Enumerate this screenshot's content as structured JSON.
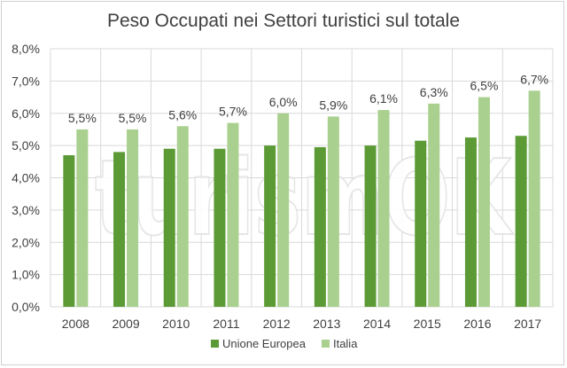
{
  "chart_data": {
    "type": "bar",
    "title": "Peso Occupati nei Settori turistici sul totale",
    "categories": [
      "2008",
      "2009",
      "2010",
      "2011",
      "2012",
      "2013",
      "2014",
      "2015",
      "2016",
      "2017"
    ],
    "series": [
      {
        "name": "Unione Europea",
        "color": "#5b9a35",
        "values": [
          4.7,
          4.8,
          4.9,
          4.9,
          5.0,
          4.95,
          5.0,
          5.15,
          5.25,
          5.3
        ],
        "data_labels": []
      },
      {
        "name": "Italia",
        "color": "#a9d08e",
        "values": [
          5.5,
          5.5,
          5.6,
          5.7,
          6.0,
          5.9,
          6.1,
          6.3,
          6.5,
          6.7
        ],
        "data_labels": [
          "5,5%",
          "5,5%",
          "5,6%",
          "5,7%",
          "6,0%",
          "5,9%",
          "6,1%",
          "6,3%",
          "6,5%",
          "6,7%"
        ]
      }
    ],
    "yticks": [
      "0,0%",
      "1,0%",
      "2,0%",
      "3,0%",
      "4,0%",
      "5,0%",
      "6,0%",
      "7,0%",
      "8,0%"
    ],
    "ylim": [
      0,
      8
    ],
    "grid": true,
    "legend_position": "bottom",
    "watermark": "turismOK"
  }
}
